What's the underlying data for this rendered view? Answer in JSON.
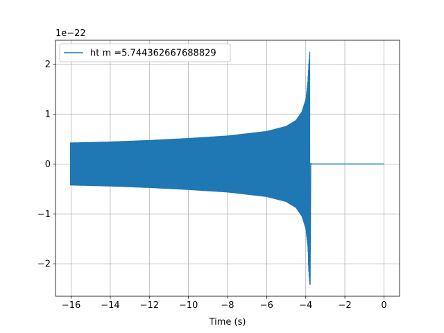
{
  "chart_data": {
    "type": "line",
    "title": "",
    "xlabel": "Time (s)",
    "ylabel": "",
    "y_offset_label": "1e−22",
    "xlim": [
      -16.8,
      0.8
    ],
    "ylim": [
      -2.65,
      2.48
    ],
    "x_ticks": [
      -16,
      -14,
      -12,
      -10,
      -8,
      -6,
      -4,
      -2,
      0
    ],
    "x_tick_labels": [
      "−16",
      "−14",
      "−12",
      "−10",
      "−8",
      "−6",
      "−4",
      "−2",
      "0"
    ],
    "y_ticks": [
      -2,
      -1,
      0,
      1,
      2
    ],
    "y_tick_labels": [
      "−2",
      "−1",
      "0",
      "1",
      "2"
    ],
    "grid": true,
    "legend_position": "top-left",
    "series": [
      {
        "name": "ht m =5.744362667688829",
        "color": "#1f77b4",
        "signal": {
          "x_start": -16.05,
          "x_merger": -3.78,
          "x_end": 0.0,
          "envelope": [
            [
              -16.05,
              0.43
            ],
            [
              -14.0,
              0.45
            ],
            [
              -12.0,
              0.48
            ],
            [
              -10.0,
              0.52
            ],
            [
              -8.0,
              0.57
            ],
            [
              -6.0,
              0.66
            ],
            [
              -5.0,
              0.76
            ],
            [
              -4.5,
              0.88
            ],
            [
              -4.2,
              1.05
            ],
            [
              -4.0,
              1.3
            ],
            [
              -3.9,
              1.65
            ],
            [
              -3.85,
              2.0
            ],
            [
              -3.8,
              2.25
            ],
            [
              -3.78,
              2.25
            ]
          ],
          "min_peak": -2.42,
          "ringdown_level": 0.02
        }
      }
    ]
  }
}
